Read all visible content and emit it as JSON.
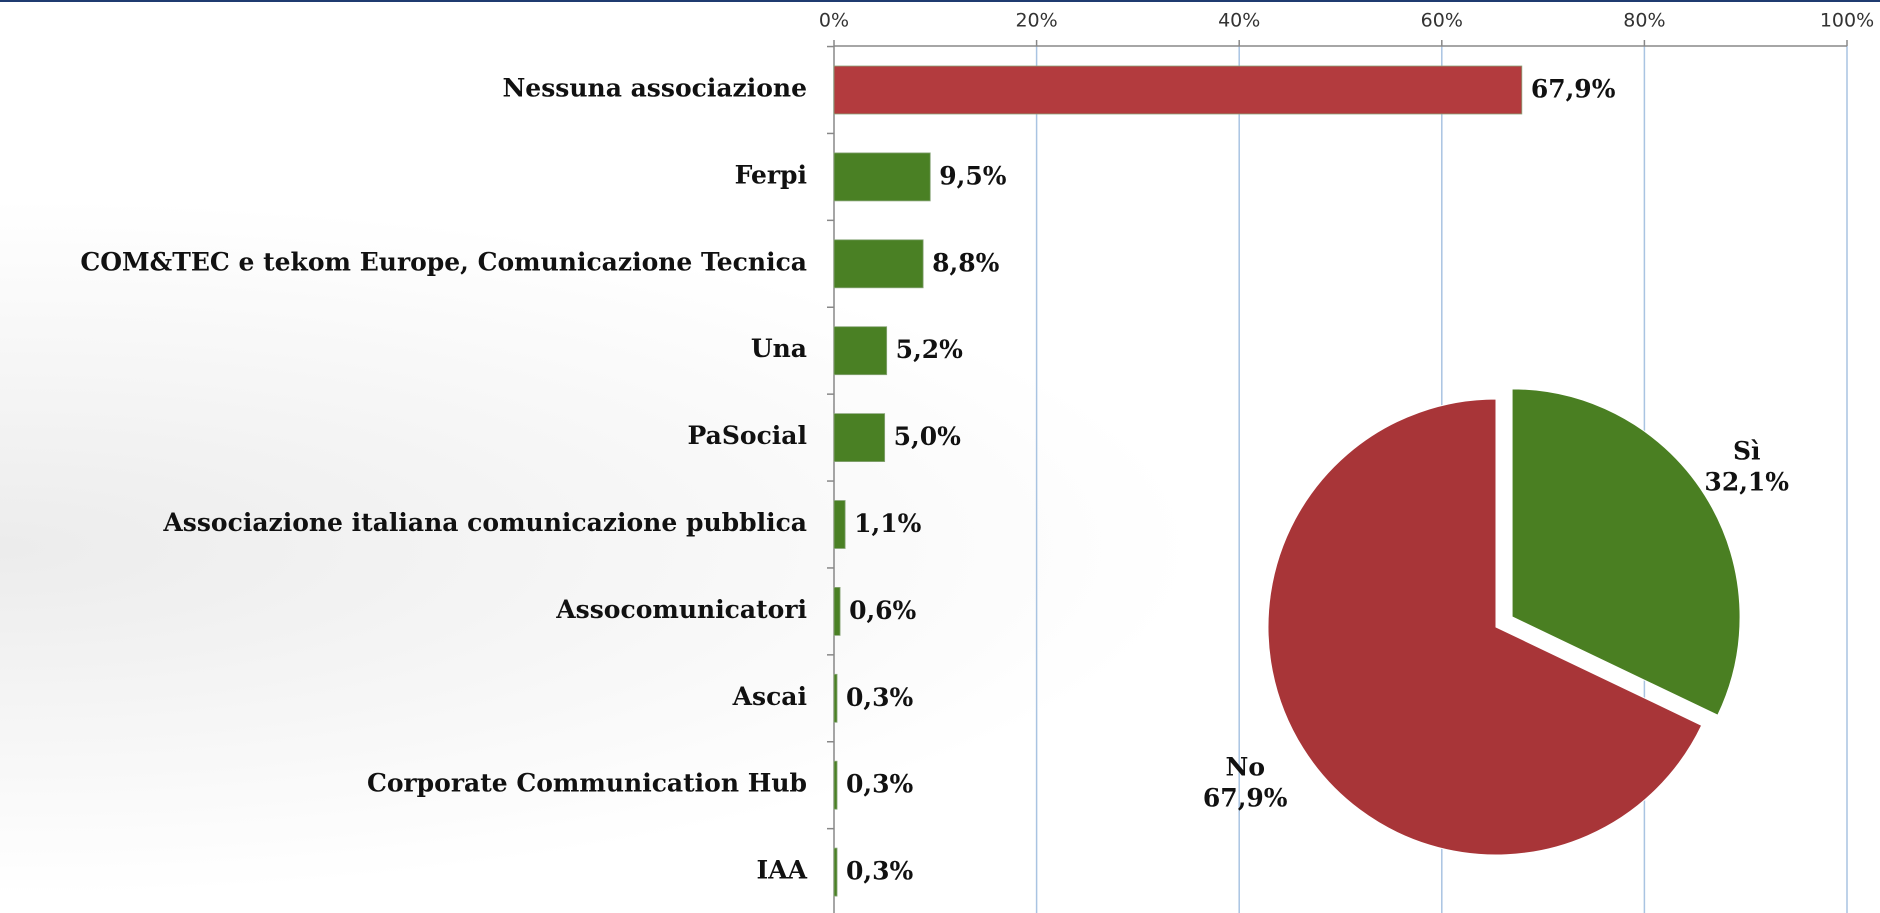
{
  "chart_data": [
    {
      "type": "barh",
      "categories": [
        "Nessuna associazione",
        "Ferpi",
        "COM&TEC e tekom Europe, Comunicazione Tecnica",
        "Una",
        "PaSocial",
        "Associazione italiana comunicazione pubblica",
        "Assocomunicatori",
        "Ascai",
        "Corporate Communication Hub",
        "IAA"
      ],
      "values": [
        67.9,
        9.5,
        8.8,
        5.2,
        5.0,
        1.1,
        0.6,
        0.3,
        0.3,
        0.3
      ],
      "value_labels": [
        "67,9%",
        "9,5%",
        "8,8%",
        "5,2%",
        "5,0%",
        "1,1%",
        "0,6%",
        "0,3%",
        "0,3%",
        "0,3%"
      ],
      "colors": [
        "#b33b3e",
        "#4a8024",
        "#4a8024",
        "#4a8024",
        "#4a8024",
        "#4a8024",
        "#4a8024",
        "#4a8024",
        "#4a8024",
        "#4a8024"
      ],
      "xlim": [
        0,
        100
      ],
      "xticks": [
        {
          "value": 0,
          "label": "0%"
        },
        {
          "value": 20,
          "label": "20%"
        },
        {
          "value": 40,
          "label": "40%"
        },
        {
          "value": 60,
          "label": "60%"
        },
        {
          "value": 80,
          "label": "80%"
        },
        {
          "value": 100,
          "label": "100%"
        }
      ],
      "grid": true
    },
    {
      "type": "pie",
      "categories": [
        "Sì",
        "No"
      ],
      "values": [
        32.1,
        67.9
      ],
      "value_labels": [
        "32,1%",
        "67,9%"
      ],
      "colors": [
        "#4a7f22",
        "#a83538"
      ]
    }
  ]
}
